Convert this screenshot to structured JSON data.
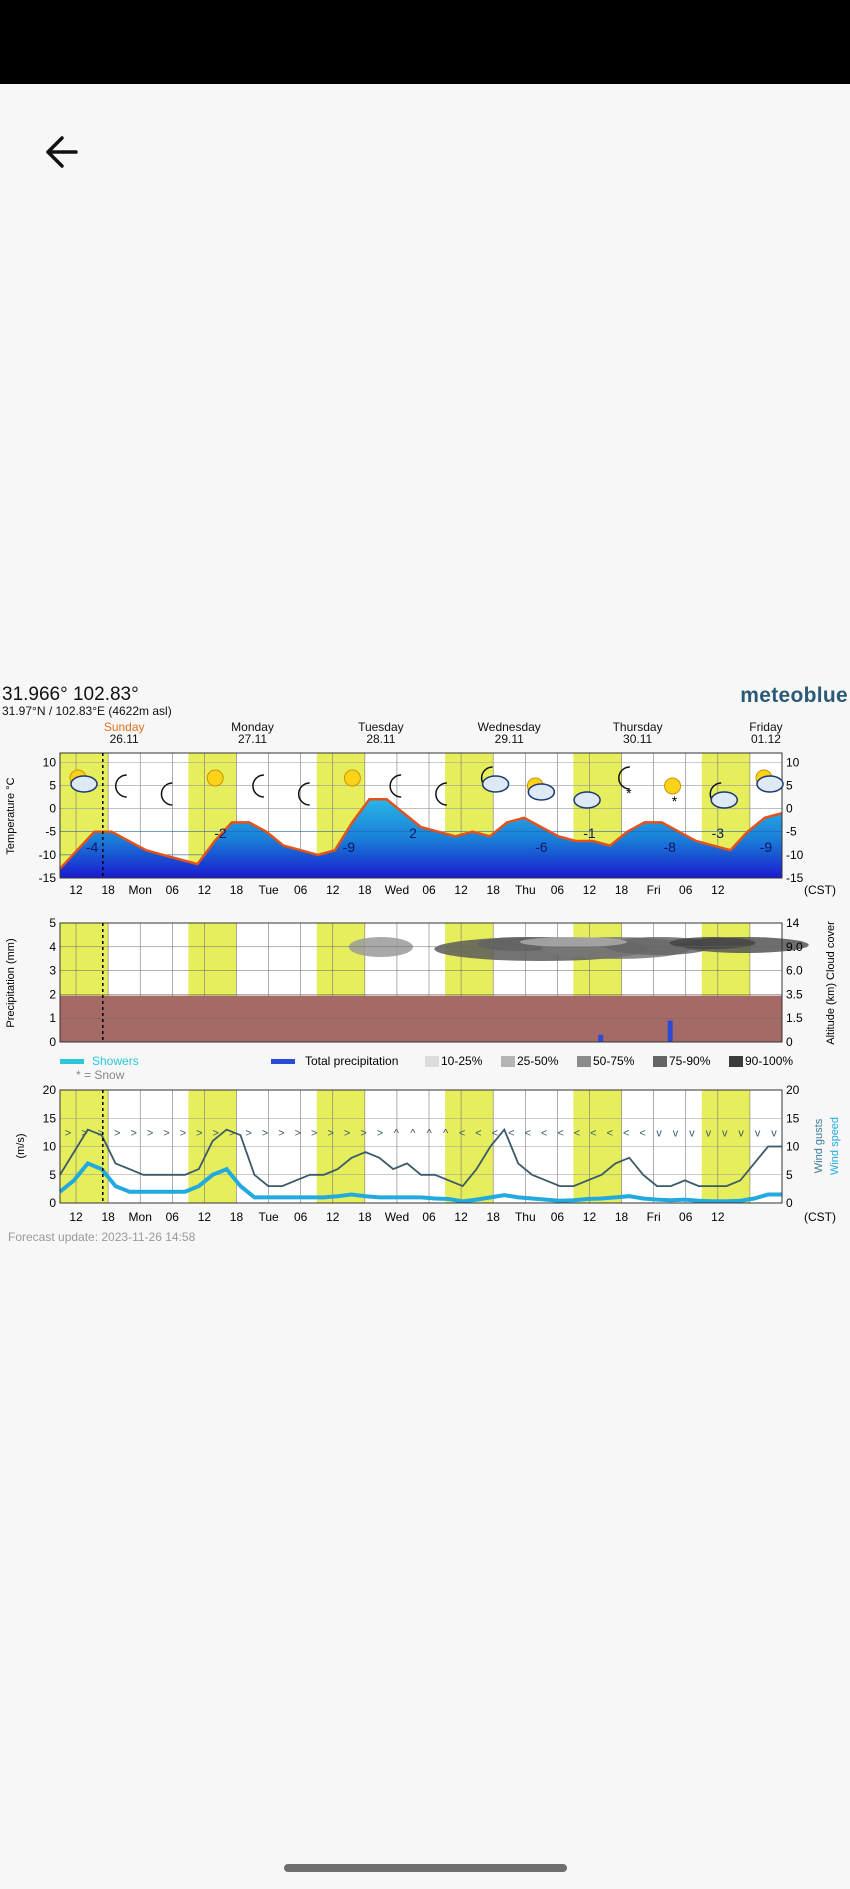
{
  "header": {
    "back_icon": "arrow-left-icon"
  },
  "meteogram": {
    "title": "31.966° 102.83°",
    "subtitle": "31.97°N / 102.83°E (4622m asl)",
    "brand": "meteoblue",
    "timezone": "(CST)",
    "forecast_update": "Forecast update: 2023-11-26 14:58",
    "days": [
      {
        "name": "Sunday",
        "date": "26.11",
        "color": "#e07020"
      },
      {
        "name": "Monday",
        "date": "27.11",
        "color": "#111111"
      },
      {
        "name": "Tuesday",
        "date": "28.11",
        "color": "#111111"
      },
      {
        "name": "Wednesday",
        "date": "29.11",
        "color": "#111111"
      },
      {
        "name": "Thursday",
        "date": "30.11",
        "color": "#111111"
      },
      {
        "name": "Friday",
        "date": "01.12",
        "color": "#111111"
      }
    ],
    "time_ticks": [
      "12",
      "18",
      "Mon",
      "06",
      "12",
      "18",
      "Tue",
      "06",
      "12",
      "18",
      "Wed",
      "06",
      "12",
      "18",
      "Thu",
      "06",
      "12",
      "18",
      "Fri",
      "06",
      "12"
    ],
    "temperature_panel": {
      "ylabel": "Temperature °C",
      "yticks": [
        "10",
        "5",
        "0",
        "-5",
        "-10",
        "-15"
      ],
      "ylim": [
        -15,
        12
      ],
      "daily_labels": [
        "-4",
        "-2",
        "-9",
        "2",
        "-6",
        "-1",
        "-8",
        "-3",
        "-9"
      ],
      "temperature": [
        -13,
        -9,
        -5,
        -5,
        -7,
        -9,
        -10,
        -11,
        -12,
        -7,
        -3,
        -3,
        -5,
        -8,
        -9,
        -10,
        -9,
        -3,
        2,
        2,
        -1,
        -4,
        -5,
        -6,
        -5,
        -6,
        -3,
        -2,
        -4,
        -6,
        -7,
        -7,
        -8,
        -5,
        -3,
        -3,
        -5,
        -7,
        -8,
        -9,
        -5,
        -2,
        -1
      ],
      "weather_icons": [
        "sun-cloud",
        "moon",
        "moon",
        "sun",
        "moon",
        "moon",
        "sun",
        "moon",
        "moon",
        "moon-cloud",
        "sun-cloud",
        "cloud",
        "moon-snow",
        "sun-snow",
        "moon-cloud",
        "sun-cloud"
      ]
    },
    "precip_panel": {
      "ylabel": "Precipitation (mm)",
      "ylabel_right": "Altitude (km) Cloud cover",
      "yticks_left": [
        "5",
        "4",
        "3",
        "2",
        "1",
        "0"
      ],
      "yticks_right": [
        "14",
        "9.0",
        "6.0",
        "3.5",
        "1.5",
        "0"
      ],
      "legend": {
        "showers": "Showers",
        "snow": "* = Snow",
        "total": "Total precipitation",
        "cover_levels": [
          "10-25%",
          "25-50%",
          "50-75%",
          "75-90%",
          "90-100%"
        ],
        "cover_colors": [
          "#dcdcdc",
          "#b4b4b4",
          "#8c8c8c",
          "#646464",
          "#3c3c3c"
        ]
      }
    },
    "wind_panel": {
      "ylabel": "(m/s)",
      "ylabel_right_gusts": "Wind gusts",
      "ylabel_right_speed": "Wind speed",
      "yticks": [
        "20",
        "15",
        "10",
        "5",
        "0"
      ],
      "ylim": [
        0,
        20
      ],
      "gusts": [
        5,
        9,
        13,
        12,
        7,
        6,
        5,
        5,
        5,
        5,
        6,
        11,
        13,
        12,
        5,
        3,
        3,
        4,
        5,
        5,
        6,
        8,
        9,
        8,
        6,
        7,
        5,
        5,
        4,
        3,
        6,
        10,
        13,
        7,
        5,
        4,
        3,
        3,
        4,
        5,
        7,
        8,
        5,
        3,
        3,
        4,
        3,
        3,
        3,
        4,
        7,
        10,
        10
      ],
      "speed": [
        2,
        4,
        7,
        6,
        3,
        2,
        2,
        2,
        2,
        2,
        3,
        5,
        6,
        3,
        1,
        1,
        1,
        1,
        1,
        1,
        1.2,
        1.5,
        1.2,
        1,
        1,
        1,
        1,
        0.8,
        0.7,
        0.3,
        0.6,
        1,
        1.4,
        1,
        0.8,
        0.6,
        0.4,
        0.5,
        0.7,
        0.8,
        1,
        1.2,
        0.8,
        0.6,
        0.5,
        0.6,
        0.4,
        0.3,
        0.3,
        0.4,
        0.8,
        1.5,
        1.5
      ]
    }
  }
}
